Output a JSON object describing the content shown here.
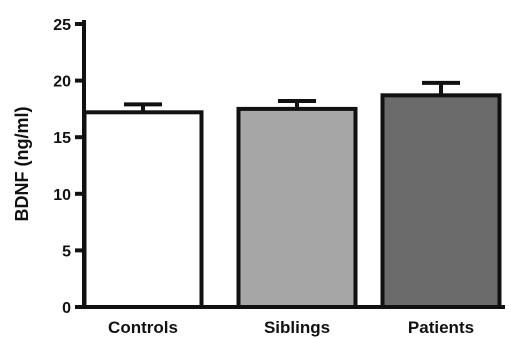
{
  "chart_data": {
    "type": "bar",
    "title": "",
    "xlabel": "",
    "ylabel": "BDNF (ng/ml)",
    "ylim": [
      0,
      25
    ],
    "yticks": [
      0,
      5,
      10,
      15,
      20,
      25
    ],
    "grid": false,
    "categories": [
      "Controls",
      "Siblings",
      "Patients"
    ],
    "values": [
      17.2,
      17.5,
      18.7
    ],
    "errors": [
      0.7,
      0.7,
      1.1
    ],
    "colors": [
      "#ffffff",
      "#a6a6a6",
      "#6b6b6b"
    ]
  }
}
